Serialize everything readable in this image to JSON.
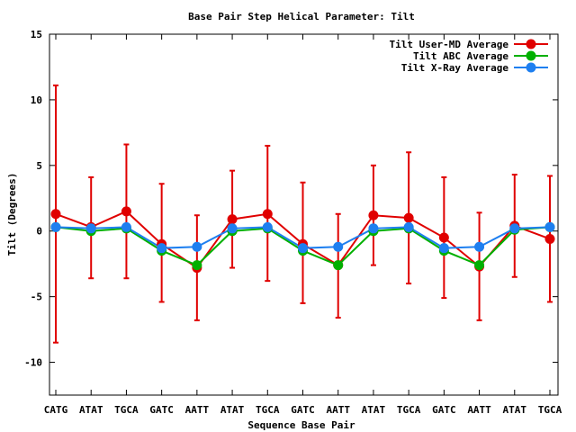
{
  "chart_data": {
    "type": "line",
    "title": "Base Pair Step Helical Parameter: Tilt",
    "xlabel": "Sequence Base Pair",
    "ylabel": "Tilt (Degrees)",
    "categories": [
      "CATG",
      "ATAT",
      "TGCA",
      "GATC",
      "AATT",
      "ATAT",
      "TGCA",
      "GATC",
      "AATT",
      "ATAT",
      "TGCA",
      "GATC",
      "AATT",
      "ATAT",
      "TGCA"
    ],
    "ylim": [
      -12.5,
      15
    ],
    "yticks": [
      15,
      10,
      5,
      0,
      -5,
      -10
    ],
    "legend_position": "top-right",
    "grid": false,
    "series": [
      {
        "name": "Tilt User-MD Average",
        "color": "#e00000",
        "values": [
          1.3,
          0.3,
          1.5,
          -1.0,
          -2.8,
          0.9,
          1.3,
          -1.0,
          -2.6,
          1.2,
          1.0,
          -0.5,
          -2.7,
          0.4,
          -0.6
        ],
        "error_low": [
          -8.5,
          -3.6,
          -3.6,
          -5.4,
          -6.8,
          -2.8,
          -3.8,
          -5.5,
          -6.6,
          -2.6,
          -4.0,
          -5.1,
          -6.8,
          -3.5,
          -5.4
        ],
        "error_high": [
          11.1,
          4.1,
          6.6,
          3.6,
          1.2,
          4.6,
          6.5,
          3.7,
          1.3,
          5.0,
          6.0,
          4.1,
          1.4,
          4.3,
          4.2
        ]
      },
      {
        "name": "Tilt ABC Average",
        "color": "#00b000",
        "values": [
          0.3,
          0.0,
          0.2,
          -1.5,
          -2.6,
          0.0,
          0.2,
          -1.5,
          -2.6,
          0.0,
          0.2,
          -1.5,
          -2.6,
          0.1,
          0.3
        ]
      },
      {
        "name": "Tilt X-Ray Average",
        "color": "#1e7ff0",
        "values": [
          0.3,
          0.2,
          0.3,
          -1.3,
          -1.2,
          0.2,
          0.3,
          -1.3,
          -1.2,
          0.2,
          0.3,
          -1.3,
          -1.2,
          0.2,
          0.3
        ]
      }
    ]
  }
}
